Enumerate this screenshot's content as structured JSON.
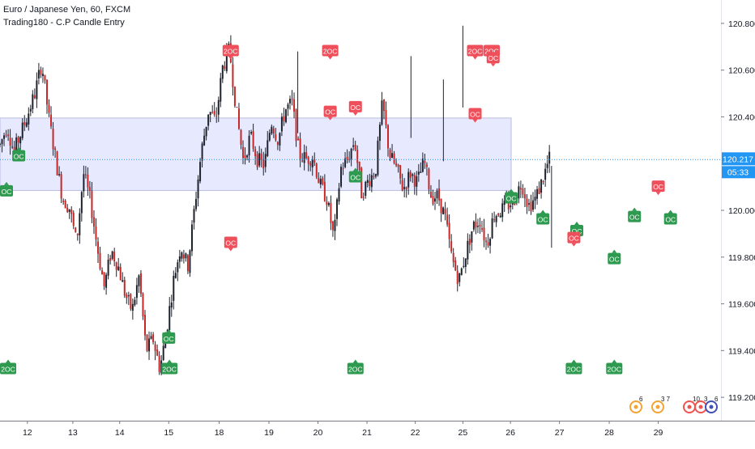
{
  "legend": {
    "symbol": "Euro / Japanese Yen, 60, FXCM",
    "indicator": "Trading180 - C.P Candle Entry"
  },
  "price_axis": {
    "current_price": "120.217",
    "countdown": "05:33",
    "ticks": [
      "120.800",
      "120.600",
      "120.400",
      "120.000",
      "119.800",
      "119.600",
      "119.400",
      "119.200"
    ]
  },
  "time_axis": {
    "labels": [
      "12",
      "13",
      "14",
      "15",
      "18",
      "19",
      "20",
      "21",
      "22",
      "25",
      "26",
      "27",
      "28",
      "29"
    ]
  },
  "events": [
    {
      "count": "6"
    },
    {
      "count": "3 7"
    },
    {
      "count": "10"
    },
    {
      "count": "3"
    },
    {
      "count": "6"
    }
  ],
  "colors": {
    "up": "#26a69a",
    "down": "#ef5350",
    "candle_body": "#1e222d",
    "zone_fill": "#e3e5ff",
    "zone_border": "#b9bce0",
    "price_line": "#2196f3",
    "bull_signal": "#2e9a4f",
    "bear_signal": "#ef4f5a"
  },
  "chart_data": {
    "type": "candlestick",
    "ylim": [
      119.1,
      120.9
    ],
    "xlim": [
      0,
      100
    ],
    "zone": {
      "low": 120.085,
      "high": 120.395
    },
    "last_price": 120.217,
    "close_path": [
      [
        0,
        120.28
      ],
      [
        1,
        120.36
      ],
      [
        2,
        120.25
      ],
      [
        3,
        120.33
      ],
      [
        4,
        120.41
      ],
      [
        5,
        120.5
      ],
      [
        6,
        120.63
      ],
      [
        7,
        120.4
      ],
      [
        8,
        120.22
      ],
      [
        9,
        120.05
      ],
      [
        10,
        120.01
      ],
      [
        11,
        119.86
      ],
      [
        12,
        120.16
      ],
      [
        13,
        120.04
      ],
      [
        14,
        119.84
      ],
      [
        15,
        119.67
      ],
      [
        16,
        119.83
      ],
      [
        17,
        119.76
      ],
      [
        18,
        119.64
      ],
      [
        19,
        119.57
      ],
      [
        20,
        119.72
      ],
      [
        21,
        119.4
      ],
      [
        22,
        119.45
      ],
      [
        23,
        119.32
      ],
      [
        24,
        119.5
      ],
      [
        25,
        119.71
      ],
      [
        26,
        119.85
      ],
      [
        27,
        119.76
      ],
      [
        28,
        120.02
      ],
      [
        29,
        120.26
      ],
      [
        30,
        120.43
      ],
      [
        31,
        120.38
      ],
      [
        32,
        120.61
      ],
      [
        33,
        120.69
      ],
      [
        34,
        120.42
      ],
      [
        35,
        120.21
      ],
      [
        36,
        120.32
      ],
      [
        37,
        120.22
      ],
      [
        38,
        120.19
      ],
      [
        39,
        120.38
      ],
      [
        40,
        120.3
      ],
      [
        41,
        120.43
      ],
      [
        42,
        120.46
      ],
      [
        43,
        120.24
      ],
      [
        44,
        120.22
      ],
      [
        45,
        120.23
      ],
      [
        46,
        120.11
      ],
      [
        47,
        120.05
      ],
      [
        48,
        119.88
      ],
      [
        49,
        120.18
      ],
      [
        50,
        120.22
      ],
      [
        51,
        120.3
      ],
      [
        52,
        120.07
      ],
      [
        53,
        120.13
      ],
      [
        54,
        120.17
      ],
      [
        55,
        120.46
      ],
      [
        56,
        120.24
      ],
      [
        57,
        120.18
      ],
      [
        58,
        120.09
      ],
      [
        59,
        120.16
      ],
      [
        60,
        120.12
      ],
      [
        61,
        120.21
      ],
      [
        62,
        120.06
      ],
      [
        63,
        120.06
      ],
      [
        64,
        119.97
      ],
      [
        65,
        119.79
      ],
      [
        66,
        119.7
      ],
      [
        67,
        119.82
      ],
      [
        68,
        119.93
      ],
      [
        69,
        119.96
      ],
      [
        70,
        119.85
      ],
      [
        71,
        119.98
      ],
      [
        72,
        120.0
      ],
      [
        73,
        120.02
      ],
      [
        74,
        120.05
      ],
      [
        75,
        120.12
      ],
      [
        76,
        120.02
      ],
      [
        77,
        120.05
      ],
      [
        78,
        120.13
      ],
      [
        79,
        120.22
      ]
    ],
    "signals": [
      {
        "label": "OC",
        "bull": true,
        "x": 2.6,
        "price": 120.23
      },
      {
        "label": "OC",
        "bull": true,
        "x": 0,
        "price": 120.08
      },
      {
        "label": "OC",
        "bull": true,
        "x": 23.4,
        "price": 119.45
      },
      {
        "label": "OC",
        "bull": true,
        "x": 49.3,
        "price": 120.14
      },
      {
        "label": "OC",
        "bull": true,
        "x": 70.9,
        "price": 120.05
      },
      {
        "label": "OC",
        "bull": true,
        "x": 75.3,
        "price": 119.96
      },
      {
        "label": "OC",
        "bull": true,
        "x": 80,
        "price": 119.91
      },
      {
        "label": "OC",
        "bull": true,
        "x": 85.2,
        "price": 119.79
      },
      {
        "label": "OC",
        "bull": true,
        "x": 88,
        "price": 119.97
      },
      {
        "label": "OC",
        "bull": true,
        "x": 93,
        "price": 119.96
      },
      {
        "label": "2OC",
        "bull": true,
        "x": 0,
        "price": 119.32
      },
      {
        "label": "2OC",
        "bull": true,
        "x": 23.5,
        "price": 119.32
      },
      {
        "label": "2OC",
        "bull": true,
        "x": 49.3,
        "price": 119.32
      },
      {
        "label": "2OC",
        "bull": true,
        "x": 79.6,
        "price": 119.32
      },
      {
        "label": "2OC",
        "bull": true,
        "x": 85.2,
        "price": 119.32
      },
      {
        "label": "2OC",
        "bull": false,
        "x": 32,
        "price": 120.68
      },
      {
        "label": "2OC",
        "bull": false,
        "x": 45.8,
        "price": 120.68
      },
      {
        "label": "2OC",
        "bull": false,
        "x": 65.9,
        "price": 120.68
      },
      {
        "label": "2OC",
        "bull": false,
        "x": 68.2,
        "price": 120.68
      },
      {
        "label": "OC",
        "bull": false,
        "x": 45.8,
        "price": 120.42
      },
      {
        "label": "OC",
        "bull": false,
        "x": 49.3,
        "price": 120.44
      },
      {
        "label": "OC",
        "bull": false,
        "x": 65.9,
        "price": 120.41
      },
      {
        "label": "OC",
        "bull": false,
        "x": 68.4,
        "price": 120.65
      },
      {
        "label": "OC",
        "bull": false,
        "x": 32,
        "price": 119.86
      },
      {
        "label": "OC",
        "bull": false,
        "x": 79.6,
        "price": 119.88
      },
      {
        "label": "OC",
        "bull": false,
        "x": 91.3,
        "price": 120.1
      }
    ]
  }
}
